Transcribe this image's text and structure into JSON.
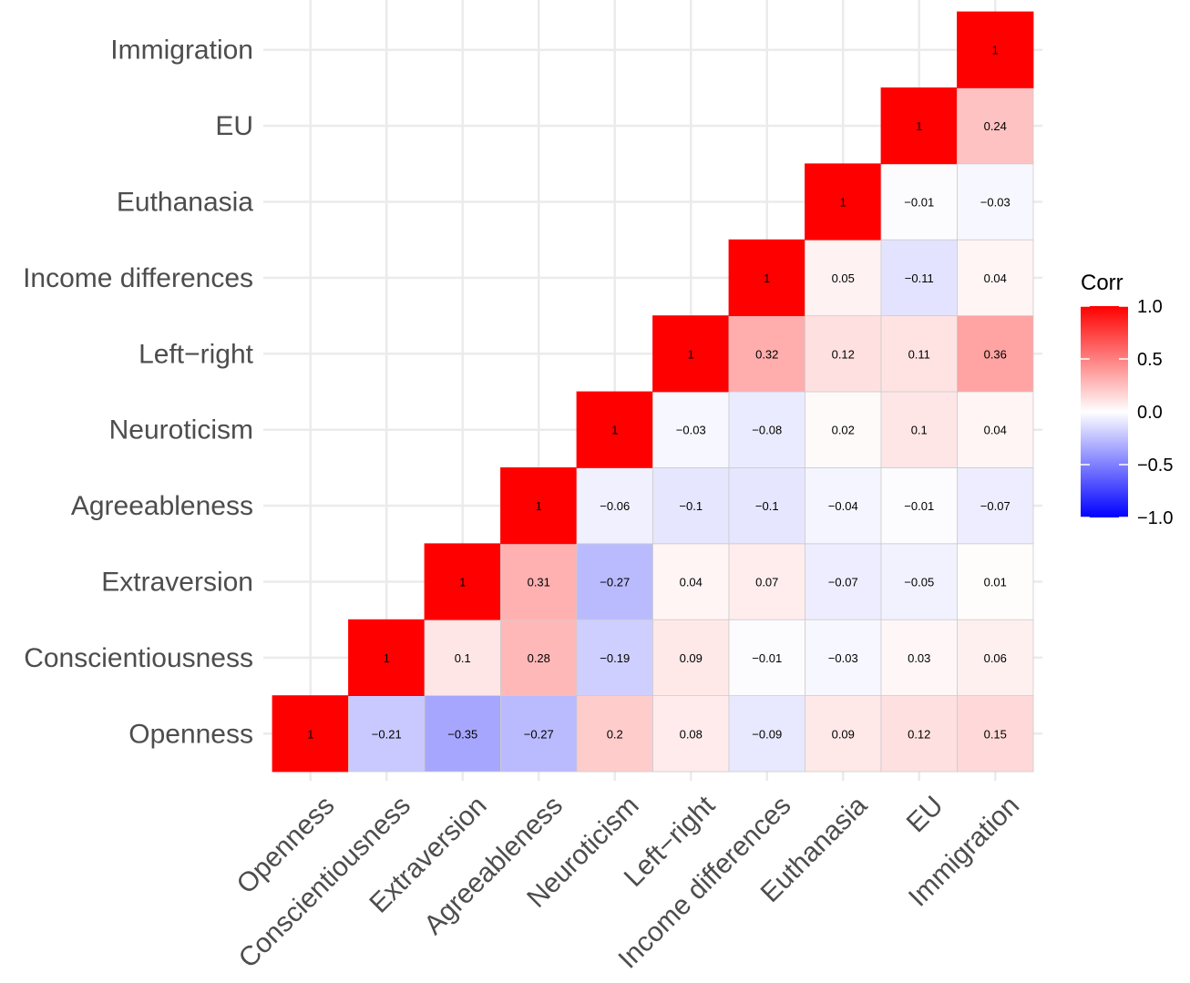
{
  "chart_data": {
    "type": "heatmap",
    "variables": [
      "Openness",
      "Conscientiousness",
      "Extraversion",
      "Agreeableness",
      "Neuroticism",
      "Left−right",
      "Income differences",
      "Euthanasia",
      "EU",
      "Immigration"
    ],
    "triangle": "upper",
    "cells": [
      {
        "x": "Openness",
        "y": "Openness",
        "value": 1,
        "label": "1"
      },
      {
        "x": "Conscientiousness",
        "y": "Openness",
        "value": -0.21,
        "label": "−0.21"
      },
      {
        "x": "Conscientiousness",
        "y": "Conscientiousness",
        "value": 1,
        "label": "1"
      },
      {
        "x": "Extraversion",
        "y": "Openness",
        "value": -0.35,
        "label": "−0.35"
      },
      {
        "x": "Extraversion",
        "y": "Conscientiousness",
        "value": 0.1,
        "label": "0.1"
      },
      {
        "x": "Extraversion",
        "y": "Extraversion",
        "value": 1,
        "label": "1"
      },
      {
        "x": "Agreeableness",
        "y": "Openness",
        "value": -0.27,
        "label": "−0.27"
      },
      {
        "x": "Agreeableness",
        "y": "Conscientiousness",
        "value": 0.28,
        "label": "0.28"
      },
      {
        "x": "Agreeableness",
        "y": "Extraversion",
        "value": 0.31,
        "label": "0.31"
      },
      {
        "x": "Agreeableness",
        "y": "Agreeableness",
        "value": 1,
        "label": "1"
      },
      {
        "x": "Neuroticism",
        "y": "Openness",
        "value": 0.2,
        "label": "0.2"
      },
      {
        "x": "Neuroticism",
        "y": "Conscientiousness",
        "value": -0.19,
        "label": "−0.19"
      },
      {
        "x": "Neuroticism",
        "y": "Extraversion",
        "value": -0.27,
        "label": "−0.27"
      },
      {
        "x": "Neuroticism",
        "y": "Agreeableness",
        "value": -0.06,
        "label": "−0.06"
      },
      {
        "x": "Neuroticism",
        "y": "Neuroticism",
        "value": 1,
        "label": "1"
      },
      {
        "x": "Left−right",
        "y": "Openness",
        "value": 0.08,
        "label": "0.08"
      },
      {
        "x": "Left−right",
        "y": "Conscientiousness",
        "value": 0.09,
        "label": "0.09"
      },
      {
        "x": "Left−right",
        "y": "Extraversion",
        "value": 0.04,
        "label": "0.04"
      },
      {
        "x": "Left−right",
        "y": "Agreeableness",
        "value": -0.1,
        "label": "−0.1"
      },
      {
        "x": "Left−right",
        "y": "Neuroticism",
        "value": -0.03,
        "label": "−0.03"
      },
      {
        "x": "Left−right",
        "y": "Left−right",
        "value": 1,
        "label": "1"
      },
      {
        "x": "Income differences",
        "y": "Openness",
        "value": -0.09,
        "label": "−0.09"
      },
      {
        "x": "Income differences",
        "y": "Conscientiousness",
        "value": -0.01,
        "label": "−0.01"
      },
      {
        "x": "Income differences",
        "y": "Extraversion",
        "value": 0.07,
        "label": "0.07"
      },
      {
        "x": "Income differences",
        "y": "Agreeableness",
        "value": -0.1,
        "label": "−0.1"
      },
      {
        "x": "Income differences",
        "y": "Neuroticism",
        "value": -0.08,
        "label": "−0.08"
      },
      {
        "x": "Income differences",
        "y": "Left−right",
        "value": 0.32,
        "label": "0.32"
      },
      {
        "x": "Income differences",
        "y": "Income differences",
        "value": 1,
        "label": "1"
      },
      {
        "x": "Euthanasia",
        "y": "Openness",
        "value": 0.09,
        "label": "0.09"
      },
      {
        "x": "Euthanasia",
        "y": "Conscientiousness",
        "value": -0.03,
        "label": "−0.03"
      },
      {
        "x": "Euthanasia",
        "y": "Extraversion",
        "value": -0.07,
        "label": "−0.07"
      },
      {
        "x": "Euthanasia",
        "y": "Agreeableness",
        "value": -0.04,
        "label": "−0.04"
      },
      {
        "x": "Euthanasia",
        "y": "Neuroticism",
        "value": 0.02,
        "label": "0.02"
      },
      {
        "x": "Euthanasia",
        "y": "Left−right",
        "value": 0.12,
        "label": "0.12"
      },
      {
        "x": "Euthanasia",
        "y": "Income differences",
        "value": 0.05,
        "label": "0.05"
      },
      {
        "x": "Euthanasia",
        "y": "Euthanasia",
        "value": 1,
        "label": "1"
      },
      {
        "x": "EU",
        "y": "Openness",
        "value": 0.12,
        "label": "0.12"
      },
      {
        "x": "EU",
        "y": "Conscientiousness",
        "value": 0.03,
        "label": "0.03"
      },
      {
        "x": "EU",
        "y": "Extraversion",
        "value": -0.05,
        "label": "−0.05"
      },
      {
        "x": "EU",
        "y": "Agreeableness",
        "value": -0.01,
        "label": "−0.01"
      },
      {
        "x": "EU",
        "y": "Neuroticism",
        "value": 0.1,
        "label": "0.1"
      },
      {
        "x": "EU",
        "y": "Left−right",
        "value": 0.11,
        "label": "0.11"
      },
      {
        "x": "EU",
        "y": "Income differences",
        "value": -0.11,
        "label": "−0.11"
      },
      {
        "x": "EU",
        "y": "Euthanasia",
        "value": -0.01,
        "label": "−0.01"
      },
      {
        "x": "EU",
        "y": "EU",
        "value": 1,
        "label": "1"
      },
      {
        "x": "Immigration",
        "y": "Openness",
        "value": 0.15,
        "label": "0.15"
      },
      {
        "x": "Immigration",
        "y": "Conscientiousness",
        "value": 0.06,
        "label": "0.06"
      },
      {
        "x": "Immigration",
        "y": "Extraversion",
        "value": 0.01,
        "label": "0.01"
      },
      {
        "x": "Immigration",
        "y": "Agreeableness",
        "value": -0.07,
        "label": "−0.07"
      },
      {
        "x": "Immigration",
        "y": "Neuroticism",
        "value": 0.04,
        "label": "0.04"
      },
      {
        "x": "Immigration",
        "y": "Left−right",
        "value": 0.36,
        "label": "0.36"
      },
      {
        "x": "Immigration",
        "y": "Income differences",
        "value": 0.04,
        "label": "0.04"
      },
      {
        "x": "Immigration",
        "y": "Euthanasia",
        "value": -0.03,
        "label": "−0.03"
      },
      {
        "x": "Immigration",
        "y": "EU",
        "value": 0.24,
        "label": "0.24"
      },
      {
        "x": "Immigration",
        "y": "Immigration",
        "value": 1,
        "label": "1"
      }
    ],
    "legend": {
      "title": "Corr",
      "placement": "right",
      "ticks": [
        1.0,
        0.5,
        0.0,
        -0.5,
        -1.0
      ],
      "tick_labels": [
        "1.0",
        "0.5",
        "0.0",
        "−0.5",
        "−1.0"
      ],
      "range": [
        -1,
        1
      ]
    },
    "colors": {
      "low": "#0000ff",
      "mid": "#ffffff",
      "high": "#ff0000",
      "tile_border": "#cccccc",
      "grid": "#ebebeb",
      "axis_text": "#4d4d4d"
    },
    "grid": true,
    "x_tick_rotation_deg": 45
  }
}
